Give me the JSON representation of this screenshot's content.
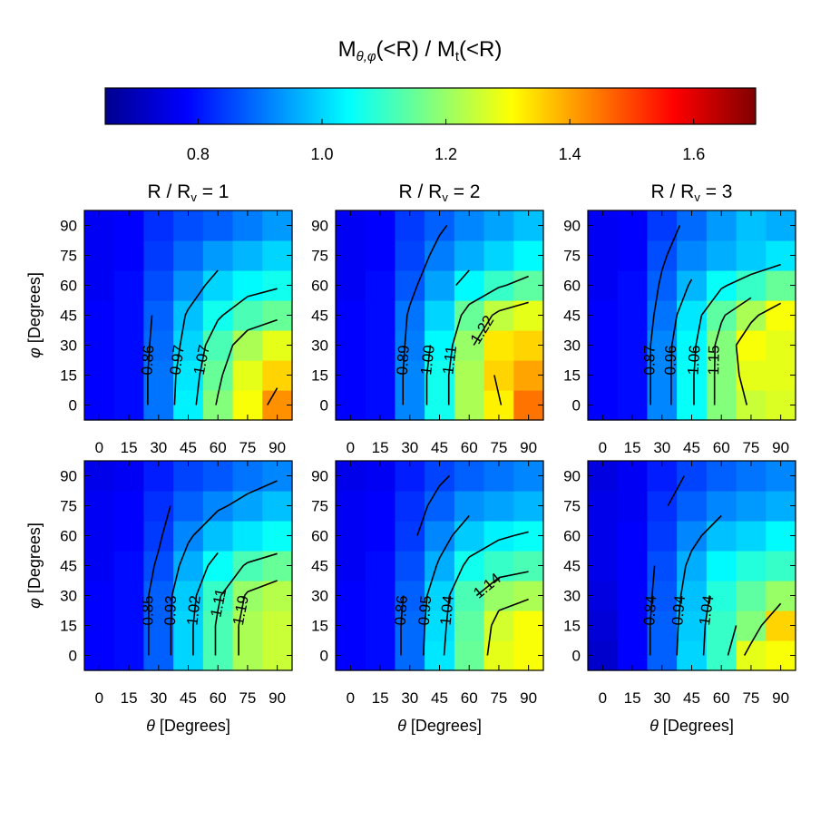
{
  "chart_data": {
    "type": "heatmap",
    "title": [
      "M",
      "θ,φ",
      "(<R) / M",
      "t",
      "(<R)"
    ],
    "colorbar": {
      "lim": [
        0.65,
        1.7
      ],
      "ticks": [
        0.8,
        {
          "value": 1.0,
          "label": "1.0"
        },
        1.2,
        1.4,
        1.6
      ]
    },
    "panels": [
      {
        "type": "heatmap",
        "title": [
          "R / R",
          "v",
          " = 1"
        ],
        "x": [
          0,
          15,
          30,
          45,
          60,
          75,
          90
        ],
        "y": [
          0,
          15,
          30,
          45,
          60,
          75,
          90
        ],
        "xlim": [
          -7.5,
          97.5
        ],
        "ylim": [
          -7.5,
          97.5
        ],
        "xticks": [
          0,
          15,
          30,
          45,
          60,
          75,
          90
        ],
        "yticks": [
          0,
          15,
          30,
          45,
          60,
          75,
          90
        ],
        "ylabel": [
          "φ",
          " [Degrees]"
        ],
        "values": [
          [
            0.78,
            0.79,
            0.9,
            1.03,
            1.18,
            1.3,
            1.42
          ],
          [
            0.78,
            0.79,
            0.9,
            1.02,
            1.15,
            1.28,
            1.35
          ],
          [
            0.78,
            0.79,
            0.89,
            1.0,
            1.12,
            1.22,
            1.28
          ],
          [
            0.78,
            0.79,
            0.88,
            0.98,
            1.06,
            1.12,
            1.15
          ],
          [
            0.77,
            0.79,
            0.86,
            0.93,
            1.0,
            1.04,
            1.06
          ],
          [
            0.77,
            0.78,
            0.84,
            0.89,
            0.94,
            0.97,
            1.0
          ],
          [
            0.77,
            0.78,
            0.83,
            0.86,
            0.88,
            0.91,
            0.94
          ]
        ],
        "contours": [
          0.86,
          0.97,
          1.07
        ],
        "unlabeled_contours": [
          1.17,
          1.28,
          1.38
        ]
      },
      {
        "type": "heatmap",
        "title": [
          "R / R",
          "v",
          " = 2"
        ],
        "x": [
          0,
          15,
          30,
          45,
          60,
          75,
          90
        ],
        "y": [
          0,
          15,
          30,
          45,
          60,
          75,
          90
        ],
        "xlim": [
          -7.5,
          97.5
        ],
        "ylim": [
          -7.5,
          97.5
        ],
        "xticks": [
          0,
          15,
          30,
          45,
          60,
          75,
          90
        ],
        "yticks": [
          0,
          15,
          30,
          45,
          60,
          75,
          90
        ],
        "values": [
          [
            0.78,
            0.79,
            0.92,
            1.06,
            1.22,
            1.32,
            1.45
          ],
          [
            0.78,
            0.79,
            0.92,
            1.06,
            1.22,
            1.35,
            1.4
          ],
          [
            0.78,
            0.79,
            0.91,
            1.04,
            1.2,
            1.33,
            1.35
          ],
          [
            0.78,
            0.79,
            0.9,
            1.0,
            1.15,
            1.24,
            1.28
          ],
          [
            0.77,
            0.79,
            0.87,
            0.95,
            1.04,
            1.1,
            1.14
          ],
          [
            0.77,
            0.78,
            0.85,
            0.91,
            0.96,
            1.0,
            1.04
          ],
          [
            0.77,
            0.78,
            0.84,
            0.88,
            0.92,
            0.95,
            0.98
          ]
        ],
        "contours": [
          0.89,
          {
            "value": 1.0,
            "label": "1.00"
          },
          1.11,
          1.22
        ],
        "unlabeled_contours": [
          1.33
        ]
      },
      {
        "type": "heatmap",
        "title": [
          "R / R",
          "v",
          " = 3"
        ],
        "x": [
          0,
          15,
          30,
          45,
          60,
          75,
          90
        ],
        "y": [
          0,
          15,
          30,
          45,
          60,
          75,
          90
        ],
        "xlim": [
          -7.5,
          97.5
        ],
        "ylim": [
          -7.5,
          97.5
        ],
        "xticks": [
          0,
          15,
          30,
          45,
          60,
          75,
          90
        ],
        "yticks": [
          0,
          15,
          30,
          45,
          60,
          75,
          90
        ],
        "values": [
          [
            0.78,
            0.79,
            0.92,
            1.05,
            1.18,
            1.25,
            1.27
          ],
          [
            0.78,
            0.79,
            0.92,
            1.05,
            1.18,
            1.28,
            1.28
          ],
          [
            0.78,
            0.79,
            0.92,
            1.04,
            1.18,
            1.3,
            1.28
          ],
          [
            0.78,
            0.79,
            0.9,
            1.02,
            1.14,
            1.22,
            1.3
          ],
          [
            0.77,
            0.79,
            0.88,
            0.97,
            1.05,
            1.1,
            1.15
          ],
          [
            0.77,
            0.78,
            0.86,
            0.92,
            0.96,
            0.99,
            1.02
          ],
          [
            0.77,
            0.78,
            0.84,
            0.89,
            0.94,
            0.98,
            0.96
          ]
        ],
        "contours": [
          0.87,
          0.96,
          1.06,
          1.15
        ],
        "unlabeled_contours": [
          1.24
        ]
      },
      {
        "type": "heatmap",
        "x": [
          0,
          15,
          30,
          45,
          60,
          75,
          90
        ],
        "y": [
          0,
          15,
          30,
          45,
          60,
          75,
          90
        ],
        "xlim": [
          -7.5,
          97.5
        ],
        "ylim": [
          -7.5,
          97.5
        ],
        "xticks": [
          0,
          15,
          30,
          45,
          60,
          75,
          90
        ],
        "yticks": [
          0,
          15,
          30,
          45,
          60,
          75,
          90
        ],
        "xlabel": [
          "θ",
          " [Degrees]"
        ],
        "ylabel": [
          "φ",
          " [Degrees]"
        ],
        "values": [
          [
            0.78,
            0.79,
            0.88,
            1.0,
            1.12,
            1.22,
            1.25
          ],
          [
            0.78,
            0.79,
            0.88,
            1.0,
            1.12,
            1.22,
            1.25
          ],
          [
            0.78,
            0.79,
            0.88,
            0.99,
            1.1,
            1.2,
            1.23
          ],
          [
            0.77,
            0.79,
            0.86,
            0.96,
            1.05,
            1.12,
            1.15
          ],
          [
            0.77,
            0.78,
            0.84,
            0.92,
            0.98,
            1.02,
            1.05
          ],
          [
            0.77,
            0.78,
            0.83,
            0.88,
            0.92,
            0.95,
            0.98
          ],
          [
            0.76,
            0.77,
            0.81,
            0.85,
            0.87,
            0.9,
            0.92
          ]
        ],
        "contours": [
          0.85,
          0.93,
          1.02,
          1.11,
          1.19
        ],
        "unlabeled_contours": []
      },
      {
        "type": "heatmap",
        "x": [
          0,
          15,
          30,
          45,
          60,
          75,
          90
        ],
        "y": [
          0,
          15,
          30,
          45,
          60,
          75,
          90
        ],
        "xlim": [
          -7.5,
          97.5
        ],
        "ylim": [
          -7.5,
          97.5
        ],
        "xticks": [
          0,
          15,
          30,
          45,
          60,
          75,
          90
        ],
        "yticks": [
          0,
          15,
          30,
          45,
          60,
          75,
          90
        ],
        "xlabel": [
          "θ",
          " [Degrees]"
        ],
        "values": [
          [
            0.78,
            0.79,
            0.89,
            1.02,
            1.15,
            1.28,
            1.3
          ],
          [
            0.78,
            0.79,
            0.89,
            1.01,
            1.14,
            1.26,
            1.3
          ],
          [
            0.78,
            0.79,
            0.88,
            1.0,
            1.12,
            1.2,
            1.22
          ],
          [
            0.77,
            0.79,
            0.86,
            0.96,
            1.06,
            1.1,
            1.12
          ],
          [
            0.77,
            0.78,
            0.84,
            0.92,
            0.99,
            1.03,
            1.05
          ],
          [
            0.77,
            0.78,
            0.83,
            0.88,
            0.93,
            0.95,
            0.97
          ],
          [
            0.76,
            0.77,
            0.81,
            0.85,
            0.88,
            0.9,
            0.92
          ]
        ],
        "contours": [
          0.86,
          0.95,
          1.04,
          1.14
        ],
        "unlabeled_contours": [
          1.23
        ]
      },
      {
        "type": "heatmap",
        "x": [
          0,
          15,
          30,
          45,
          60,
          75,
          90
        ],
        "y": [
          0,
          15,
          30,
          45,
          60,
          75,
          90
        ],
        "xlim": [
          -7.5,
          97.5
        ],
        "ylim": [
          -7.5,
          97.5
        ],
        "xticks": [
          0,
          15,
          30,
          45,
          60,
          75,
          90
        ],
        "yticks": [
          0,
          15,
          30,
          45,
          60,
          75,
          90
        ],
        "xlabel": [
          "θ",
          " [Degrees]"
        ],
        "values": [
          [
            0.73,
            0.78,
            0.88,
            1.0,
            1.1,
            1.28,
            1.3
          ],
          [
            0.74,
            0.78,
            0.88,
            0.99,
            1.1,
            1.18,
            1.35
          ],
          [
            0.75,
            0.78,
            0.87,
            0.98,
            1.08,
            1.14,
            1.2
          ],
          [
            0.76,
            0.78,
            0.86,
            0.96,
            1.04,
            1.08,
            1.1
          ],
          [
            0.76,
            0.78,
            0.84,
            0.92,
            0.98,
            1.0,
            1.04
          ],
          [
            0.76,
            0.77,
            0.83,
            0.88,
            0.92,
            0.94,
            0.96
          ],
          [
            0.75,
            0.77,
            0.81,
            0.85,
            0.88,
            0.9,
            0.92
          ]
        ],
        "contours": [
          0.84,
          0.94,
          1.04
        ],
        "unlabeled_contours": [
          1.14,
          1.24
        ]
      }
    ]
  }
}
